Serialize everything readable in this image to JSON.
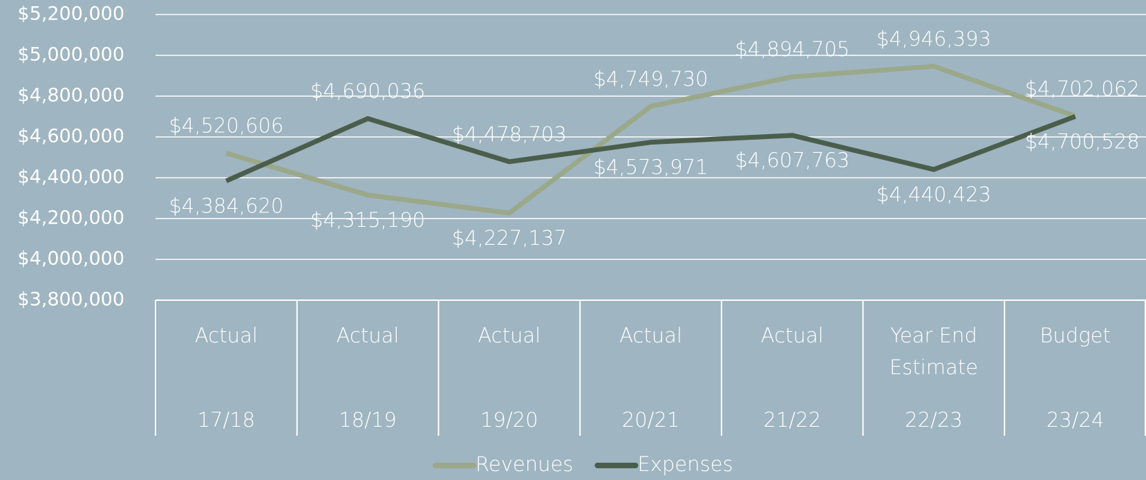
{
  "chart_data": {
    "type": "line",
    "categories": [
      "17/18",
      "18/19",
      "19/20",
      "20/21",
      "21/22",
      "22/23",
      "23/24"
    ],
    "category_groups": [
      "Actual",
      "Actual",
      "Actual",
      "Actual",
      "Actual",
      "Year End Estimate",
      "Budget"
    ],
    "series": [
      {
        "name": "Revenues",
        "color": "#9ba889",
        "values": [
          4520606,
          4315190,
          4227137,
          4749730,
          4894705,
          4946393,
          4702062
        ],
        "value_labels": [
          "$4,520,606",
          "$4,315,190",
          "$4,227,137",
          "$4,749,730",
          "$4,894,705",
          "$4,946,393",
          "$4,702,062"
        ]
      },
      {
        "name": "Expenses",
        "color": "#4a5e4b",
        "values": [
          4384620,
          4690036,
          4478703,
          4573971,
          4607763,
          4440423,
          4700528
        ],
        "value_labels": [
          "$4,384,620",
          "$4,690,036",
          "$4,478,703",
          "$4,573,971",
          "$4,607,763",
          "$4,440,423",
          "$4,700,528"
        ]
      }
    ],
    "ylim": [
      3800000,
      5200000
    ],
    "yticks": [
      {
        "value": 3800000,
        "label": "$3,800,000"
      },
      {
        "value": 4000000,
        "label": "$4,000,000"
      },
      {
        "value": 4200000,
        "label": "$4,200,000"
      },
      {
        "value": 4400000,
        "label": "$4,400,000"
      },
      {
        "value": 4600000,
        "label": "$4,600,000"
      },
      {
        "value": 4800000,
        "label": "$4,800,000"
      },
      {
        "value": 5000000,
        "label": "$5,000,000"
      },
      {
        "value": 5200000,
        "label": "$5,200,000"
      }
    ],
    "grid": true,
    "legend": "bottom"
  }
}
